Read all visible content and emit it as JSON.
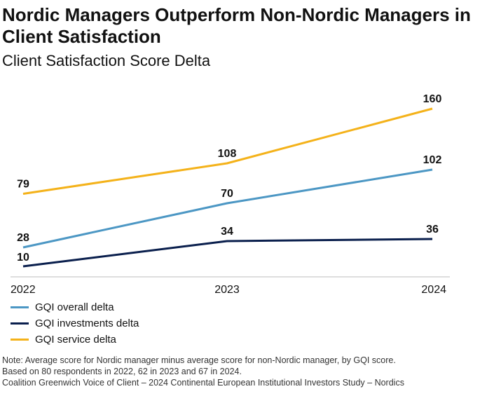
{
  "title": "Nordic Managers Outperform Non-Nordic Managers in Client Satisfaction",
  "subtitle": "Client Satisfaction Score Delta",
  "chart_data": {
    "type": "line",
    "x": [
      "2022",
      "2023",
      "2024"
    ],
    "ylim": [
      0,
      180
    ],
    "grid": false,
    "series": [
      {
        "name": "GQI overall delta",
        "color": "#4c97c4",
        "values": [
          28,
          70,
          102
        ]
      },
      {
        "name": "GQI investments delta",
        "color": "#0a1f4d",
        "values": [
          10,
          34,
          36
        ]
      },
      {
        "name": "GQI service delta",
        "color": "#f4b21a",
        "values": [
          79,
          108,
          160
        ]
      }
    ],
    "legend_position": "bottom-left"
  },
  "notes": [
    "Note: Average score for Nordic manager minus average score for non-Nordic manager, by GQI score.",
    "Based on 80 respondents in 2022, 62 in 2023 and 67 in 2024.",
    "Coalition Greenwich Voice of Client – 2024 Continental European Institutional Investors Study – Nordics"
  ]
}
